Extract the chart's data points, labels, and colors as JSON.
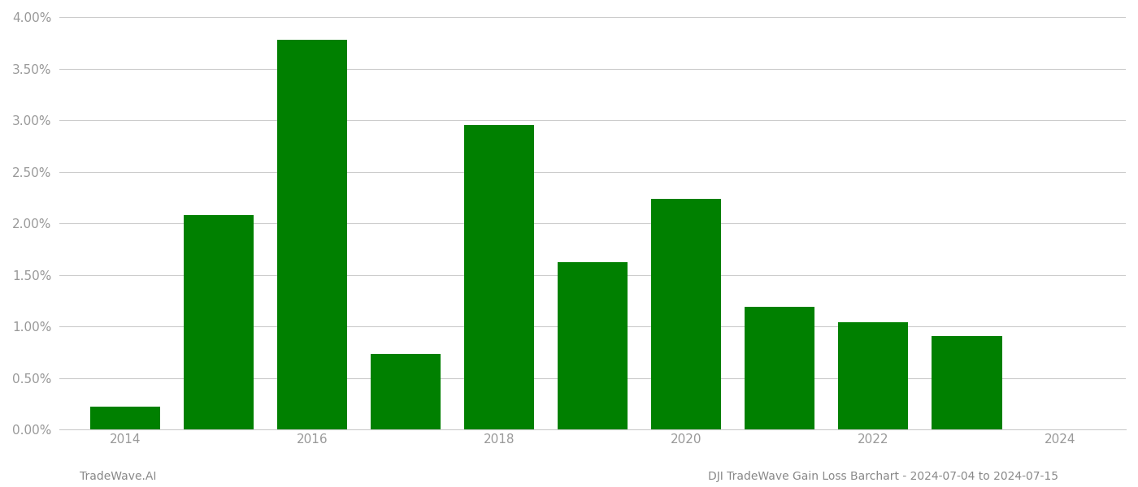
{
  "years": [
    2014,
    2015,
    2016,
    2017,
    2018,
    2019,
    2020,
    2021,
    2022,
    2023
  ],
  "values": [
    0.0022,
    0.0208,
    0.0378,
    0.0073,
    0.0295,
    0.0162,
    0.0224,
    0.0119,
    0.0104,
    0.0091
  ],
  "bar_color": "#008000",
  "background_color": "#ffffff",
  "grid_color": "#cccccc",
  "footer_left": "TradeWave.AI",
  "footer_right": "DJI TradeWave Gain Loss Barchart - 2024-07-04 to 2024-07-15",
  "footer_color": "#888888",
  "ylim": [
    0,
    0.04
  ],
  "ytick_interval": 0.005,
  "x_tick_years": [
    2014,
    2016,
    2018,
    2020,
    2022,
    2024
  ],
  "xlim": [
    2013.3,
    2024.7
  ],
  "bar_width": 0.75,
  "tick_label_color": "#999999",
  "spine_color": "#cccccc",
  "footer_fontsize": 10,
  "tick_fontsize": 11
}
